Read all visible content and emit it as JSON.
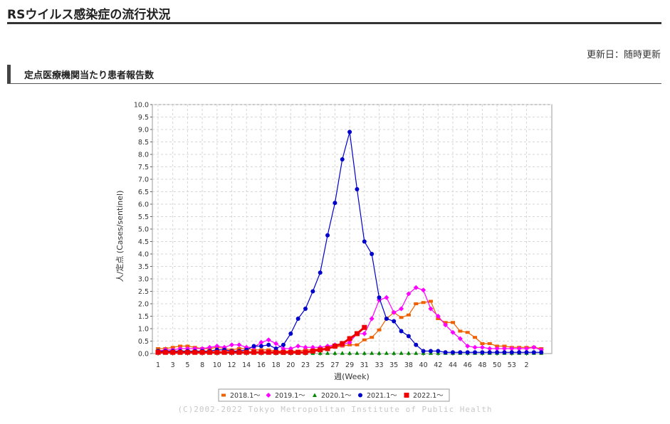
{
  "page": {
    "title": "RSウイルス感染症の流行状況",
    "updated": "更新日：随時更新",
    "section_title": "定点医療機関当たり患者報告数",
    "credit": "(C)2002-2022 Tokyo Metropolitan Institute of Public Health"
  },
  "chart_data": {
    "type": "line",
    "title": "",
    "xlabel": "週(Week)",
    "ylabel": "人/定点 (Cases/sentinel)",
    "ylim": [
      0,
      10
    ],
    "y_ticks": [
      "0.0",
      "0.5",
      "1.0",
      "1.5",
      "2.0",
      "2.5",
      "3.0",
      "3.5",
      "4.0",
      "4.5",
      "5.0",
      "5.5",
      "6.0",
      "6.5",
      "7.0",
      "7.5",
      "8.0",
      "8.5",
      "9.0",
      "9.5",
      "10.0"
    ],
    "x_tick_labels": [
      "1",
      "3",
      "5",
      "8",
      "10",
      "12",
      "14",
      "16",
      "18",
      "20",
      "23",
      "25",
      "27",
      "29",
      "31",
      "33",
      "35",
      "38",
      "40",
      "42",
      "44",
      "46",
      "48",
      "50",
      "53",
      "2"
    ],
    "grid": true,
    "legend_position": "bottom",
    "series": [
      {
        "name": "2018.1～",
        "color": "#f06000",
        "marker": "square-small",
        "values": [
          0.2,
          0.2,
          0.25,
          0.3,
          0.3,
          0.25,
          0.2,
          0.2,
          0.25,
          0.2,
          0.15,
          0.2,
          0.2,
          0.15,
          0.15,
          0.15,
          0.1,
          0.1,
          0.1,
          0.1,
          0.15,
          0.15,
          0.2,
          0.2,
          0.25,
          0.3,
          0.35,
          0.35,
          0.55,
          0.65,
          0.95,
          1.4,
          1.65,
          1.45,
          1.55,
          2.0,
          2.05,
          2.1,
          1.4,
          1.25,
          1.25,
          0.9,
          0.85,
          0.65,
          0.4,
          0.4,
          0.3,
          0.3,
          0.25,
          0.25,
          0.25,
          0.25,
          0.2
        ]
      },
      {
        "name": "2019.1～",
        "color": "#ff00ff",
        "marker": "diamond",
        "values": [
          0.1,
          0.15,
          0.15,
          0.2,
          0.2,
          0.2,
          0.2,
          0.25,
          0.3,
          0.25,
          0.35,
          0.35,
          0.25,
          0.25,
          0.45,
          0.55,
          0.4,
          0.2,
          0.2,
          0.3,
          0.25,
          0.25,
          0.25,
          0.3,
          0.35,
          0.35,
          0.45,
          0.8,
          0.8,
          1.4,
          2.15,
          2.25,
          1.65,
          1.8,
          2.4,
          2.65,
          2.55,
          1.8,
          1.5,
          1.15,
          0.85,
          0.6,
          0.3,
          0.25,
          0.25,
          0.2,
          0.2,
          0.2,
          0.2,
          0.2,
          0.2,
          0.25,
          0.15
        ]
      },
      {
        "name": "2020.1～",
        "color": "#008800",
        "marker": "triangle",
        "values": [
          0.15,
          0.2,
          0.2,
          0.25,
          0.25,
          0.2,
          0.2,
          0.15,
          0.15,
          0.2,
          0.1,
          0.05,
          0.05,
          0.05,
          0.05,
          0.05,
          0.02,
          0.02,
          0.02,
          0.02,
          0.02,
          0.02,
          0.02,
          0.02,
          0.02,
          0.02,
          0.02,
          0.02,
          0.02,
          0.02,
          0.02,
          0.02,
          0.02,
          0.02,
          0.02,
          0.02,
          0.02,
          0.02,
          0.02,
          0.02,
          0.02,
          0.02,
          0.02,
          0.02,
          0.02,
          0.02,
          0.02,
          0.02,
          0.02,
          0.02,
          0.02,
          0.02,
          0.02
        ]
      },
      {
        "name": "2021.1～",
        "color": "#0000cc",
        "marker": "circle",
        "values": [
          0.1,
          0.1,
          0.1,
          0.1,
          0.1,
          0.1,
          0.1,
          0.1,
          0.15,
          0.15,
          0.1,
          0.1,
          0.15,
          0.3,
          0.3,
          0.35,
          0.2,
          0.35,
          0.8,
          1.4,
          1.8,
          2.5,
          3.25,
          4.75,
          6.05,
          7.8,
          8.9,
          6.6,
          4.5,
          4.0,
          2.25,
          1.4,
          1.3,
          0.9,
          0.7,
          0.35,
          0.1,
          0.1,
          0.1,
          0.05,
          0.05,
          0.05,
          0.05,
          0.05,
          0.05,
          0.05,
          0.05,
          0.05,
          0.05,
          0.05,
          0.05,
          0.05,
          0.05
        ]
      },
      {
        "name": "2022.1～",
        "color": "#ee0000",
        "marker": "square-large",
        "values": [
          0.05,
          0.05,
          0.05,
          0.05,
          0.05,
          0.05,
          0.05,
          0.05,
          0.05,
          0.05,
          0.05,
          0.05,
          0.05,
          0.05,
          0.05,
          0.05,
          0.05,
          0.05,
          0.05,
          0.05,
          0.05,
          0.1,
          0.15,
          0.2,
          0.3,
          0.4,
          0.6,
          0.8,
          1.05
        ]
      }
    ]
  }
}
